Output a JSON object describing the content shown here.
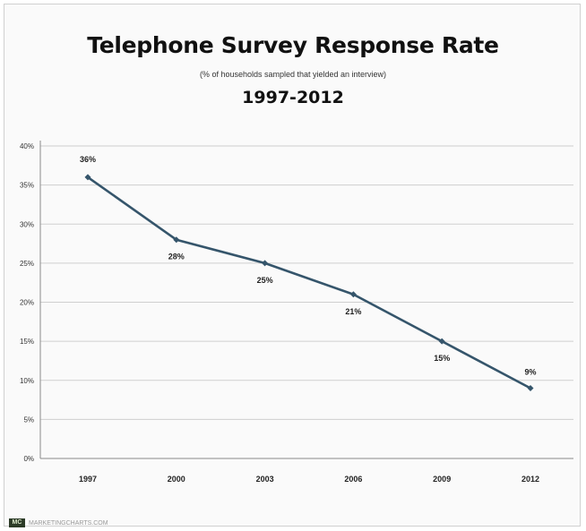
{
  "chart_data": {
    "type": "line",
    "title": "Telephone Survey Response Rate",
    "subtitle": "(% of households sampled that yielded an interview)",
    "date_range": "1997-2012",
    "categories": [
      "1997",
      "2000",
      "2003",
      "2006",
      "2009",
      "2012"
    ],
    "series": [
      {
        "values": [
          36,
          28,
          25,
          21,
          15,
          9
        ],
        "labels": [
          "36%",
          "28%",
          "25%",
          "21%",
          "15%",
          "9%"
        ]
      }
    ],
    "y_ticks": [
      "0%",
      "5%",
      "10%",
      "15%",
      "20%",
      "25%",
      "30%",
      "35%",
      "40%"
    ],
    "ylim": [
      0,
      40
    ],
    "grid": true,
    "line_color": "#35556b"
  },
  "footer": {
    "logo_text": "MC",
    "source": "MARKETINGCHARTS.COM"
  }
}
